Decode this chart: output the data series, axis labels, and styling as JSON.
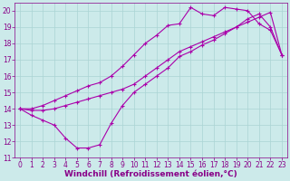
{
  "xlabel": "Windchill (Refroidissement éolien,°C)",
  "xlim": [
    -0.5,
    23.5
  ],
  "ylim": [
    11,
    20.5
  ],
  "xticks": [
    0,
    1,
    2,
    3,
    4,
    5,
    6,
    7,
    8,
    9,
    10,
    11,
    12,
    13,
    14,
    15,
    16,
    17,
    18,
    19,
    20,
    21,
    22,
    23
  ],
  "yticks": [
    11,
    12,
    13,
    14,
    15,
    16,
    17,
    18,
    19,
    20
  ],
  "background_color": "#cceaea",
  "grid_color": "#aad4d4",
  "line_color": "#aa00aa",
  "line1_x": [
    0,
    1,
    2,
    3,
    4,
    5,
    6,
    7,
    8,
    9,
    10,
    11,
    12,
    13,
    14,
    15,
    16,
    17,
    18,
    19,
    20,
    21,
    22,
    23
  ],
  "line1_y": [
    14.0,
    13.6,
    13.3,
    13.0,
    12.2,
    11.6,
    11.6,
    11.8,
    13.1,
    14.2,
    15.0,
    15.5,
    16.0,
    16.5,
    17.2,
    17.5,
    17.9,
    18.2,
    18.6,
    19.0,
    19.5,
    19.8,
    19.0,
    17.3
  ],
  "line2_x": [
    0,
    1,
    2,
    3,
    4,
    5,
    6,
    7,
    8,
    9,
    10,
    11,
    12,
    13,
    14,
    15,
    16,
    17,
    18,
    19,
    20,
    21,
    22,
    23
  ],
  "line2_y": [
    14.0,
    13.9,
    13.9,
    14.0,
    14.2,
    14.4,
    14.6,
    14.8,
    15.0,
    15.2,
    15.5,
    16.0,
    16.5,
    17.0,
    17.5,
    17.8,
    18.1,
    18.4,
    18.7,
    19.0,
    19.3,
    19.6,
    19.9,
    17.3
  ],
  "line3_x": [
    0,
    1,
    2,
    3,
    4,
    5,
    6,
    7,
    8,
    9,
    10,
    11,
    12,
    13,
    14,
    15,
    16,
    17,
    18,
    19,
    20,
    21,
    22,
    23
  ],
  "line3_y": [
    14.0,
    14.0,
    14.2,
    14.5,
    14.8,
    15.1,
    15.4,
    15.6,
    16.0,
    16.6,
    17.3,
    18.0,
    18.5,
    19.1,
    19.2,
    20.2,
    19.8,
    19.7,
    20.2,
    20.1,
    20.0,
    19.2,
    18.8,
    17.3
  ],
  "markersize": 2.0,
  "linewidth": 0.8,
  "tick_labelsize": 5.5,
  "xlabel_fontsize": 6.5,
  "font_color": "#880088"
}
